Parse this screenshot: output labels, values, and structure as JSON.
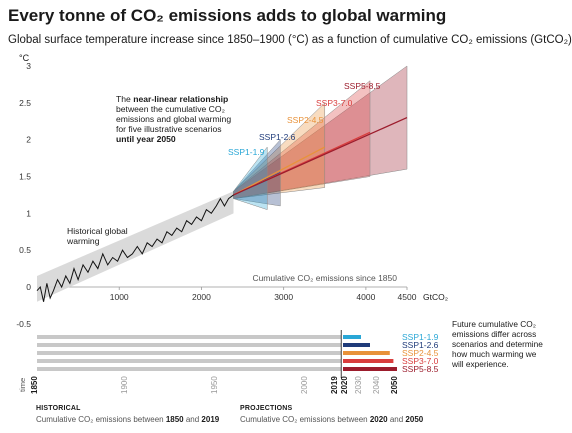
{
  "header": {
    "title": "Every tonne of CO₂ emissions adds to global warming",
    "subtitle": "Global surface temperature increase since 1850–1900 (°C) as a function of cumulative CO₂ emissions (GtCO₂)"
  },
  "annotations": {
    "near_linear": [
      "The ",
      "near-linear relationship",
      " between the cumulative CO₂ emissions and global warming for five illustrative scenarios ",
      "until year 2050"
    ],
    "historical": "Historical global warming",
    "future": "Future cumulative CO₂ emissions differ across scenarios and determine how much warming we will experience.",
    "axis_note": "Cumulative CO₂ emissions since 1850"
  },
  "chart_data": {
    "type": "line",
    "ylabel": "°C",
    "xlabel": "GtCO₂",
    "yticks": [
      -0.5,
      0,
      0.5,
      1,
      1.5,
      2,
      2.5,
      3
    ],
    "xticks": [
      1000,
      2000,
      3000,
      4000,
      4500
    ],
    "xlim": [
      0,
      4500
    ],
    "ylim": [
      -0.5,
      3.1
    ],
    "historical": {
      "name": "Historical global warming",
      "x": [
        0,
        40,
        80,
        120,
        160,
        200,
        250,
        300,
        350,
        400,
        450,
        500,
        560,
        620,
        680,
        740,
        800,
        860,
        920,
        980,
        1040,
        1100,
        1160,
        1220,
        1280,
        1340,
        1400,
        1460,
        1520,
        1580,
        1640,
        1700,
        1760,
        1820,
        1880,
        1940,
        2000,
        2060,
        2120,
        2180,
        2230,
        2280,
        2330,
        2390
      ],
      "y": [
        -0.05,
        0.0,
        -0.2,
        0.05,
        -0.15,
        -0.05,
        0.1,
        0.0,
        0.15,
        0.05,
        0.25,
        0.1,
        0.3,
        0.2,
        0.35,
        0.25,
        0.45,
        0.3,
        0.4,
        0.35,
        0.5,
        0.4,
        0.45,
        0.55,
        0.45,
        0.6,
        0.55,
        0.65,
        0.6,
        0.75,
        0.7,
        0.8,
        0.75,
        0.9,
        0.85,
        0.95,
        0.9,
        1.05,
        1.0,
        1.1,
        1.2,
        1.1,
        1.2,
        1.25
      ]
    },
    "historical_band": {
      "x": [
        0,
        2390
      ],
      "lower": [
        -0.2,
        1.0
      ],
      "upper": [
        0.15,
        1.3
      ]
    },
    "scenarios": [
      {
        "name": "SSP1-1.9",
        "color": "#2aa7d6",
        "x_end": 2800,
        "y_end": 1.45,
        "lo_end": 1.05,
        "hi_end": 1.9
      },
      {
        "name": "SSP1-2.6",
        "color": "#1f3b7a",
        "x_end": 2960,
        "y_end": 1.55,
        "lo_end": 1.1,
        "hi_end": 2.0
      },
      {
        "name": "SSP2-4.5",
        "color": "#e8923a",
        "x_end": 3500,
        "y_end": 1.9,
        "lo_end": 1.35,
        "hi_end": 2.5
      },
      {
        "name": "SSP3-7.0",
        "color": "#d93d3d",
        "x_end": 4050,
        "y_end": 2.1,
        "lo_end": 1.5,
        "hi_end": 2.8
      },
      {
        "name": "SSP5-8.5",
        "color": "#9c1c2c",
        "x_end": 4500,
        "y_end": 2.3,
        "lo_end": 1.6,
        "hi_end": 3.0
      }
    ],
    "scenario_start": {
      "x": 2390,
      "y": 1.25
    }
  },
  "timeline": {
    "axis_label": "time",
    "years": [
      "1850",
      "1900",
      "1950",
      "2000",
      "2019",
      "2020",
      "2030",
      "2040",
      "2050"
    ],
    "bold_years": [
      "1850",
      "2019",
      "2020",
      "2050"
    ],
    "historical_label": "HISTORICAL",
    "historical_sub": "Cumulative CO₂ emissions between ",
    "historical_range": [
      "1850",
      "2019"
    ],
    "projections_label": "PROJECTIONS",
    "projections_sub": "Cumulative CO₂ emissions between ",
    "projections_range": [
      "2020",
      "2050"
    ]
  }
}
